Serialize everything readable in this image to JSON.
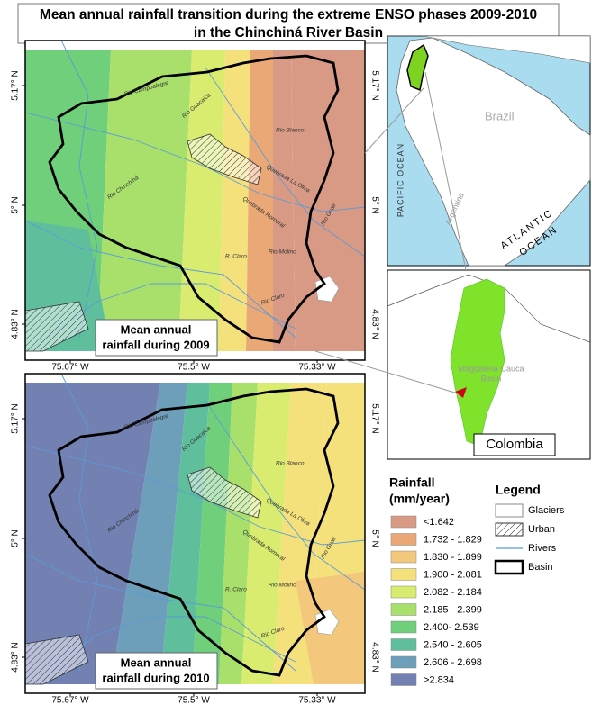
{
  "title": [
    "Mean annual rainfall transition during the extreme ENSO phases 2009-2010",
    "in the Chinchiná River Basin"
  ],
  "maps": [
    {
      "label": [
        "Mean annual",
        "rainfall during 2009"
      ]
    },
    {
      "label": [
        "Mean annual",
        "rainfall during 2010"
      ]
    }
  ],
  "lat_labels": [
    "5.17° N",
    "5° N",
    "4.83° N"
  ],
  "lon_labels": [
    "75.67° W",
    "75.5° W",
    "75.33° W"
  ],
  "rivers": [
    "Rio Blanco",
    "Quebrada La Oliva",
    "Rio Chinchiná",
    "Rio Guacaica",
    "R. Claro",
    "Rio Molino",
    "Rio Claro",
    "Quebrada Romeral",
    "Rio Campoalegre",
    "Rio Guali"
  ],
  "inset_south_america": {
    "labels": [
      "Brazil",
      "PACIFIC OCEAN",
      "Argentina"
    ],
    "atlantic": [
      "ATLANTIC",
      "OCEAN"
    ]
  },
  "inset_colombia": {
    "basin_label": [
      "Magdalena Cauca",
      "Basin"
    ],
    "country": "Colombia"
  },
  "rainfall_legend": {
    "title": [
      "Rainfall",
      "(mm/year)"
    ],
    "items": [
      {
        "label": "<1.642",
        "color": "#d99a85"
      },
      {
        "label": "1.732 - 1.829",
        "color": "#eaa877"
      },
      {
        "label": "1.830 - 1.899",
        "color": "#f3c87c"
      },
      {
        "label": "1.900 - 2.081",
        "color": "#f4e17c"
      },
      {
        "label": "2.082 - 2.184",
        "color": "#d9ec70"
      },
      {
        "label": "2.185 - 2.399",
        "color": "#a9e06c"
      },
      {
        "label": "2.400- 2.539",
        "color": "#70cf7a"
      },
      {
        "label": "2.540 - 2.605",
        "color": "#5fbf9c"
      },
      {
        "label": "2.606 - 2.698",
        "color": "#6d9fba"
      },
      {
        "label": ">2.834",
        "color": "#7281b2"
      }
    ]
  },
  "legend": {
    "title": "Legend",
    "items": [
      "Glaciers",
      "Urban",
      "Rivers",
      "Basin"
    ]
  }
}
